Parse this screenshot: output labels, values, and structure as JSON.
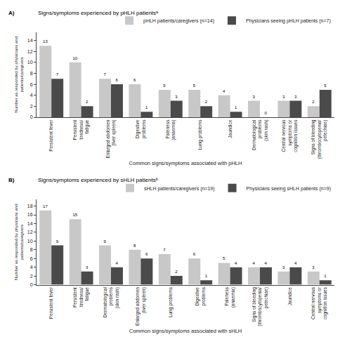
{
  "chart_data": [
    {
      "type": "bar",
      "title": "Signs/symptoms experienced by pHLH patientsᵃ",
      "annotations": [
        "A)"
      ],
      "xlabel": "Common signs/symptoms associated with pHLH",
      "ylabel": "Number as responded by physicians and\npatients/caregivers",
      "categories": [
        "Persistent fever",
        "Persistent\ntiredness/\nfatigue",
        "Enlarged abdomen\n(liver spleen)",
        "Digestive\nproblems",
        "Paleness\n(anaemia)",
        "Lung problems",
        "Jaundice",
        "Dermatological\nproblems\n(skin rash)",
        "Central nervous\nsymptoms or\ncognition issues",
        "Signs of bleeding\n(thrombocytopenia/\npetechiae)"
      ],
      "series": [
        {
          "name": "pHLH patients/caregivers (n=14)",
          "color": "#c8c8c8",
          "values": [
            13,
            10,
            7,
            6,
            5,
            5,
            4,
            3,
            3,
            2
          ]
        },
        {
          "name": "Physicians seeing pHLH patients (n=7)",
          "color": "#4a4a4a",
          "values": [
            7,
            2,
            6,
            1,
            3,
            2,
            1,
            0,
            3,
            5
          ]
        }
      ],
      "ylim": [
        0,
        15.5
      ],
      "yticks": [
        0,
        2,
        4,
        6,
        8,
        10,
        12,
        14
      ],
      "grid": false,
      "legend": "top",
      "data_labels": true
    },
    {
      "type": "bar",
      "title": "Signs/symptoms experienced by sHLH patientsᵇ",
      "annotations": [
        "B)"
      ],
      "xlabel": "Common signs/symptoms associated with sHLH",
      "ylabel": "Number as responded by physicians and\npatients/caregivers",
      "categories": [
        "Persistent fever",
        "Persistent\ntiredness/\nfatigue",
        "Dermatological\nproblems\n(skin rash)",
        "Enlarged abdomen\n(liver spleen)",
        "Lung problems",
        "Digestive\nproblems",
        "Paleness\n(anaemia)",
        "Signs of bleeding\n(thrombocytopenia/\npetechiae)",
        "Jaundice",
        "Central nervous\nsymptoms or\ncognition issues"
      ],
      "series": [
        {
          "name": "sHLH patients/caregivers (n=19)",
          "color": "#c8c8c8",
          "values": [
            17,
            15,
            9,
            8,
            7,
            6,
            5,
            4,
            3,
            3
          ]
        },
        {
          "name": "Physicians seeing sHLH patients (n=9)",
          "color": "#4a4a4a",
          "values": [
            9,
            3,
            4,
            6,
            2,
            1,
            4,
            4,
            4,
            1
          ]
        }
      ],
      "ylim": [
        0,
        19.5
      ],
      "yticks": [
        0,
        2,
        4,
        6,
        8,
        10,
        12,
        14,
        16,
        18
      ],
      "grid": false,
      "legend": "top",
      "data_labels": true
    }
  ]
}
